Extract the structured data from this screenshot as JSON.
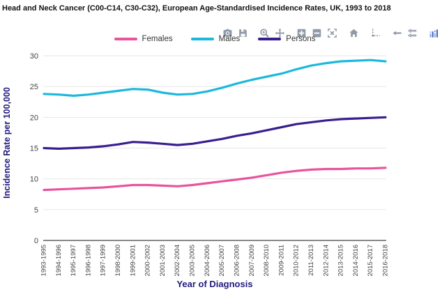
{
  "header": {
    "title": "Head and Neck Cancer (C00-C14, C30-C32), European Age-Standardised Incidence Rates, UK, 1993 to 2018"
  },
  "toolbar": {
    "icons": [
      {
        "name": "camera-icon",
        "group": 1
      },
      {
        "name": "save-icon",
        "group": 1
      },
      {
        "name": "zoom-icon",
        "group": 2
      },
      {
        "name": "pan-icon",
        "group": 2
      },
      {
        "name": "zoom-in-icon",
        "group": 3
      },
      {
        "name": "zoom-out-icon",
        "group": 3
      },
      {
        "name": "autoscale-icon",
        "group": 3
      },
      {
        "name": "reset-axes-home-icon",
        "group": 4
      },
      {
        "name": "spikelines-icon",
        "group": 5
      },
      {
        "name": "hover-closest-icon",
        "group": 6
      },
      {
        "name": "hover-compare-icon",
        "group": 6
      },
      {
        "name": "plotly-logo-icon",
        "group": 7
      }
    ]
  },
  "chart_data": {
    "type": "line",
    "title": "Head and Neck Cancer (C00-C14, C30-C32), European Age-Standardised Incidence Rates, UK, 1993 to 2018",
    "xlabel": "Year of Diagnosis",
    "ylabel": "Incidence Rate per 100,000",
    "ylim": [
      0,
      30
    ],
    "yticks": [
      0,
      5,
      10,
      15,
      20,
      25,
      30
    ],
    "grid": true,
    "legend_position": "top-center",
    "categories": [
      "1993-1995",
      "1994-1996",
      "1995-1997",
      "1996-1998",
      "1997-1999",
      "1998-2000",
      "1999-2001",
      "2000-2002",
      "2001-2003",
      "2002-2004",
      "2003-2005",
      "2004-2006",
      "2005-2007",
      "2006-2008",
      "2007-2009",
      "2008-2010",
      "2009-2011",
      "2010-2012",
      "2011-2013",
      "2012-2014",
      "2013-2015",
      "2014-2016",
      "2015-2017",
      "2016-2018"
    ],
    "series": [
      {
        "name": "Females",
        "color": "#e8539d",
        "values": [
          8.2,
          8.3,
          8.4,
          8.5,
          8.6,
          8.8,
          9.0,
          9.0,
          8.9,
          8.8,
          9.0,
          9.3,
          9.6,
          9.9,
          10.2,
          10.6,
          11.0,
          11.3,
          11.5,
          11.6,
          11.6,
          11.7,
          11.7,
          11.8
        ]
      },
      {
        "name": "Males",
        "color": "#1cb8dd",
        "values": [
          23.8,
          23.7,
          23.5,
          23.7,
          24.0,
          24.3,
          24.6,
          24.5,
          24.0,
          23.7,
          23.8,
          24.2,
          24.8,
          25.5,
          26.1,
          26.6,
          27.1,
          27.8,
          28.4,
          28.8,
          29.1,
          29.2,
          29.3,
          29.1
        ]
      },
      {
        "name": "Persons",
        "color": "#3a1e8f",
        "values": [
          15.0,
          14.9,
          15.0,
          15.1,
          15.3,
          15.6,
          16.0,
          15.9,
          15.7,
          15.5,
          15.7,
          16.1,
          16.5,
          17.0,
          17.4,
          17.9,
          18.4,
          18.9,
          19.2,
          19.5,
          19.7,
          19.8,
          19.9,
          20.0
        ]
      }
    ]
  },
  "colors": {
    "title_text": "#111111",
    "axis_title": "#231a7f",
    "tick_label": "#444444",
    "grid": "#e6e6e6",
    "axis_line": "#888888",
    "modebar_icon": "#8f99a8",
    "logo_dark": "#3b63b8",
    "logo_light": "#7ea4e8"
  }
}
